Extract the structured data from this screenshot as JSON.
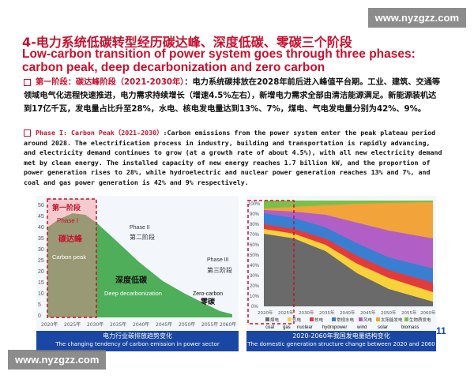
{
  "watermark": "www.nyzgzz.com",
  "title": {
    "cn": "4-电力系统低碳转型经历碳达峰、深度低碳、零碳三个阶段",
    "en": "Low-carbon transition of power system goes through three phases: carbon peak, deep decarbonization and zero carbon"
  },
  "phase1_cn": {
    "label": "第一阶段：碳达峰阶段（2021-2030年）",
    "text": "：电力系统碳排放在2028年前后进入峰值平台期。工业、建筑、交通等领域电气化进程快速推进，电力需求持续增长（增速4.5%左右），新增电力需求全部由清洁能源满足。新能源装机达到17亿千瓦，发电量占比升至28%，水电、核电发电量达到13%、7%，煤电、气电发电量分别为42%、9%。"
  },
  "phase1_en": {
    "label": "Phase I: Carbon Peak（2021-2030）",
    "text": ":Carbon emissions from the power system enter the peak plateau period around 2028. The electrification process in industry, building and transportation is rapidly advancing, and electricity demand continues to grow (at a growth rate of about 4.5%), with all new electricity demand met by clean energy. The installed capacity of new energy reaches 1.7 billion kW, and the proportion of power generation rises to 28%, while hydroelectric and nuclear power generation reaches 13% and 7%, and coal and gas power generation is 42% and 9% respectively."
  },
  "left_chart": {
    "y_ticks": [
      "50",
      "45",
      "40",
      "35",
      "30",
      "25",
      "20",
      "15",
      "10",
      "5",
      "0"
    ],
    "x_ticks": [
      "2020年",
      "2025年",
      "2030年",
      "2035年",
      "2040年",
      "2045年",
      "2050年",
      "2055年",
      "2060年"
    ],
    "phase1_cn": "第一阶段",
    "phase1_en": "Phase I",
    "peak_cn": "碳达峰",
    "peak_en": "Carbon peak",
    "phase2_en": "Phase II",
    "phase2_cn": "第二阶段",
    "deep_cn": "深度低碳",
    "deep_en": "Deep decarbonization",
    "phase3_en": "Phase III",
    "phase3_cn": "第三阶段",
    "zero_en": "Zero-carbon",
    "zero_cn": "零碳",
    "banner_cn": "电力行业碳排放趋势变化",
    "banner_en": "The changing tendency of carbon emission in power sector"
  },
  "right_chart": {
    "y_ticks": [
      "100%",
      "90%",
      "80%",
      "70%",
      "60%",
      "50%",
      "40%",
      "30%",
      "20%",
      "10%",
      "0%"
    ],
    "x_ticks": [
      "2020年",
      "2025年",
      "2030年",
      "2035年",
      "2040年",
      "2045年",
      "2050年",
      "2055年",
      "2060年"
    ],
    "legend": [
      "煤电",
      "气电",
      "核电",
      "常规水电",
      "风电",
      "太阳能发电",
      "生物质发电"
    ],
    "legend_en": [
      "coal",
      "gas",
      "nuclear",
      "hydropower",
      "wind",
      "solar",
      "biomass"
    ],
    "banner_cn": "2020-2060年我国发电量结构变化",
    "banner_en": "The domestic generation structure change between 2020 and 2060"
  },
  "page_number": "11",
  "colors": {
    "title_red": "#c8102e",
    "banner_blue": "#1a47a3",
    "phase_green": "#2e8b3a"
  }
}
